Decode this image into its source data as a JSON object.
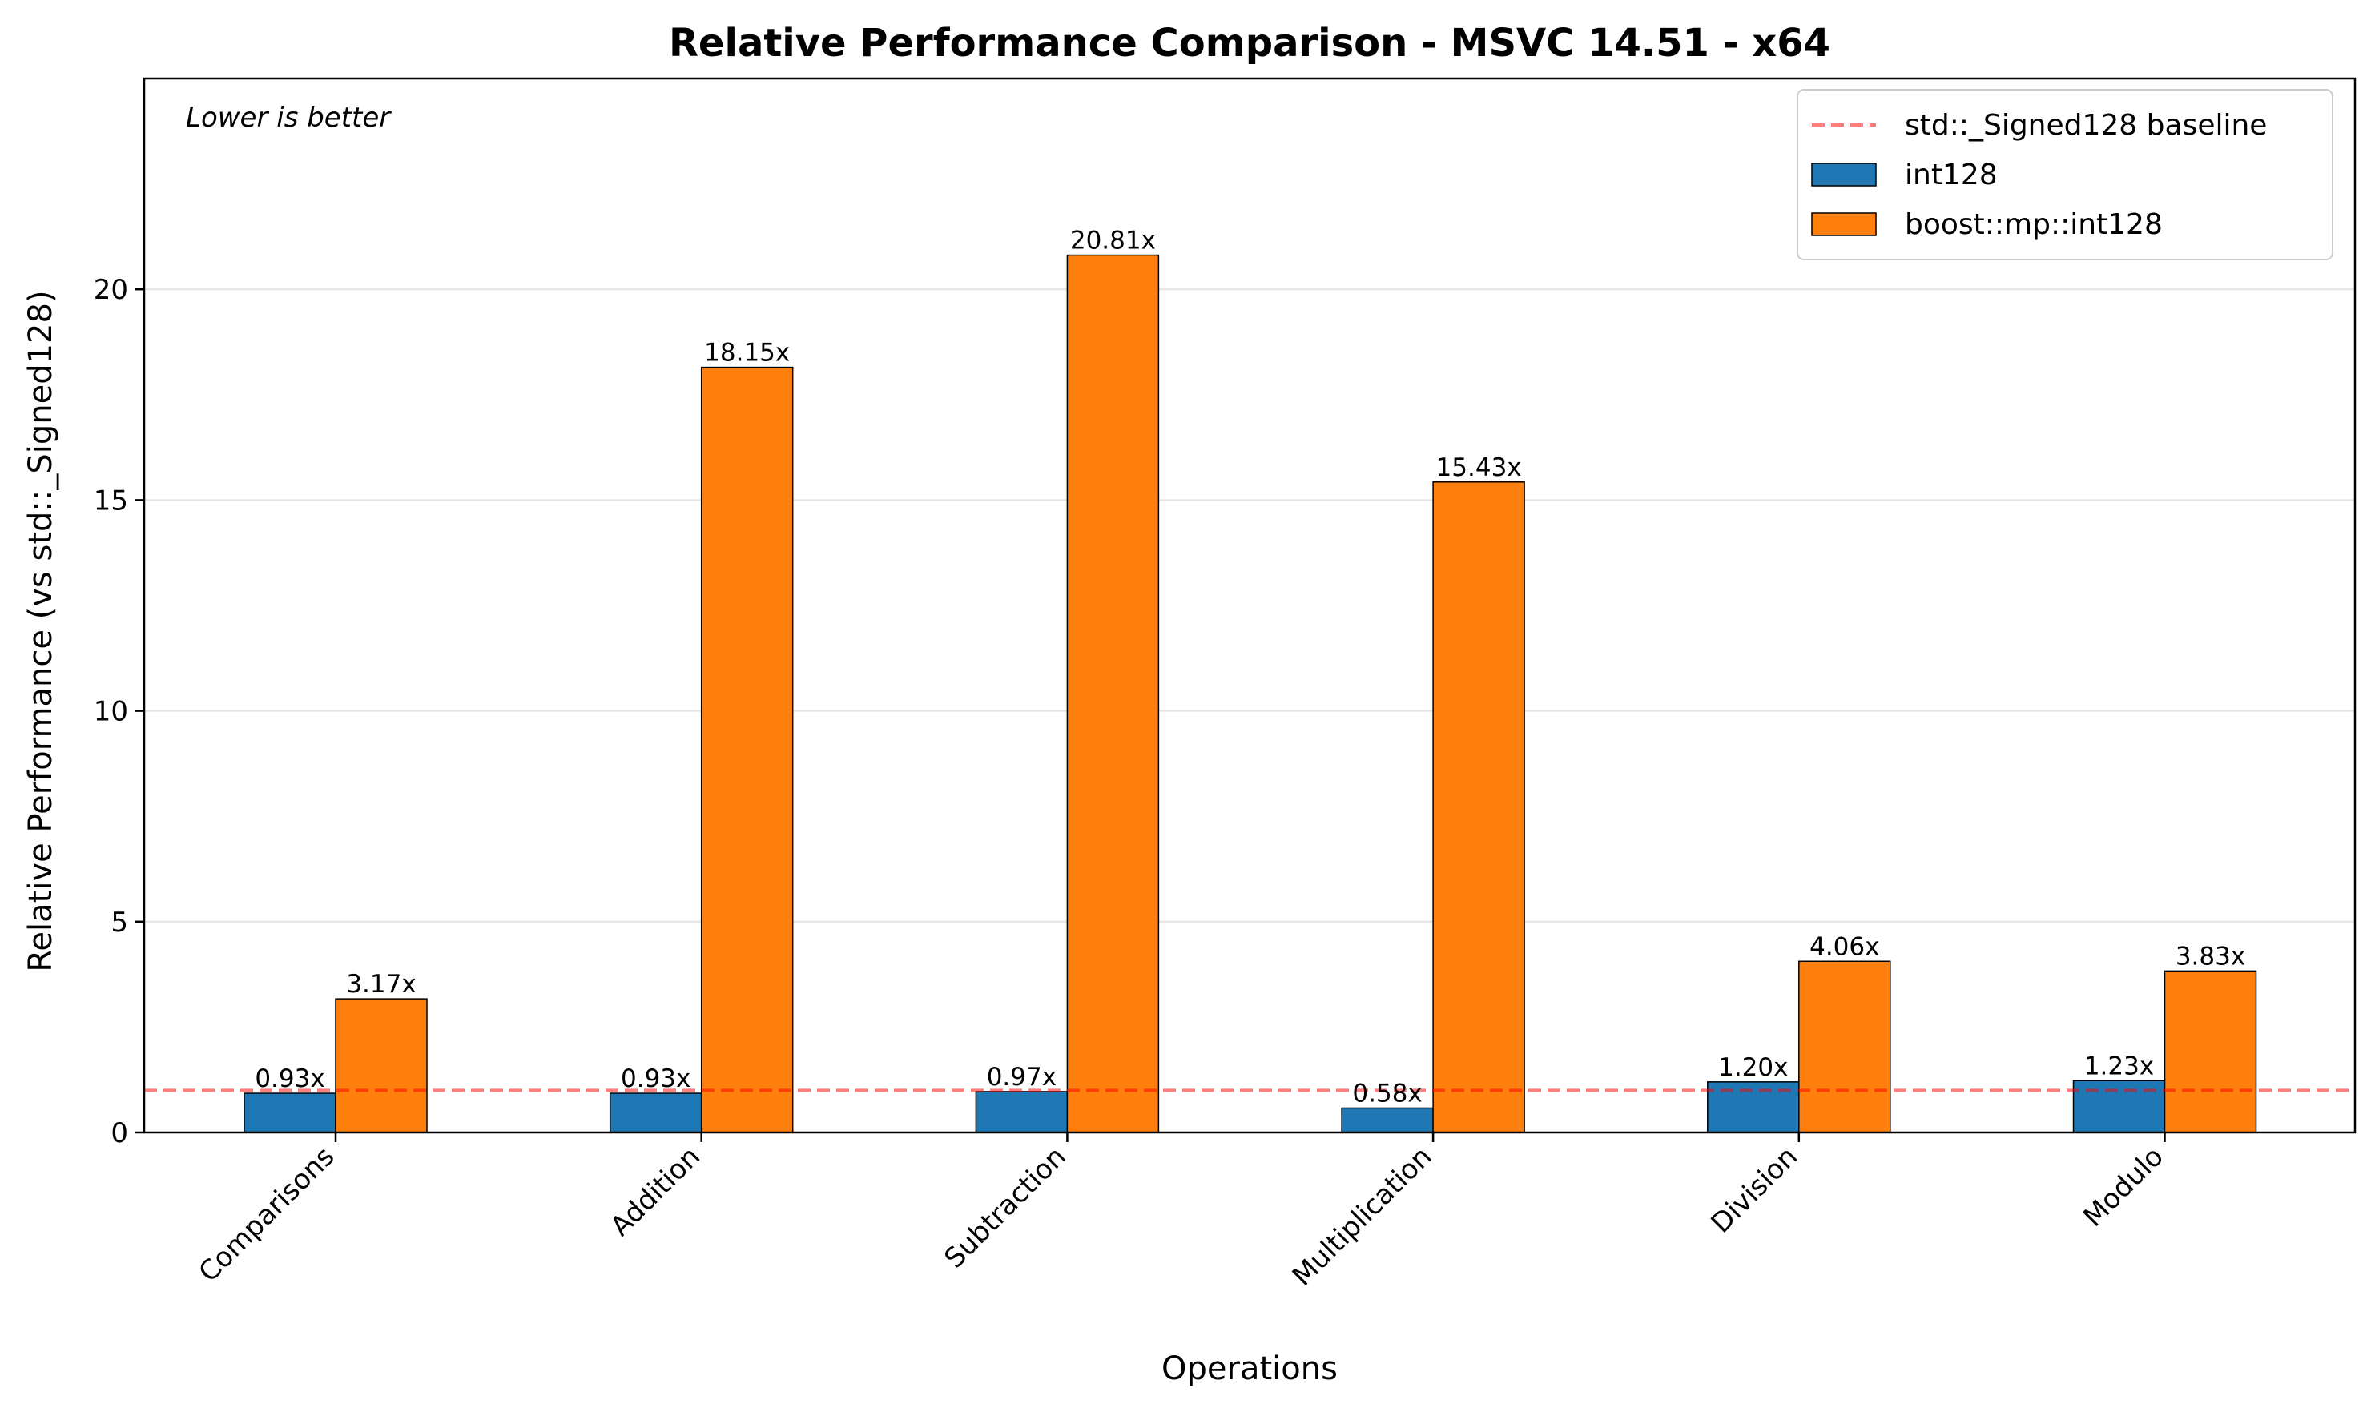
{
  "chart_data": {
    "type": "bar",
    "title": "Relative Performance Comparison - MSVC 14.51 - x64",
    "xlabel": "Operations",
    "ylabel": "Relative Performance (vs std::_Signed128)",
    "annotation": "Lower is better",
    "categories": [
      "Comparisons",
      "Addition",
      "Subtraction",
      "Multiplication",
      "Division",
      "Modulo"
    ],
    "series": [
      {
        "name": "int128",
        "color": "#1f77b4",
        "values": [
          0.93,
          0.93,
          0.97,
          0.58,
          1.2,
          1.23
        ],
        "labels": [
          "0.93x",
          "0.93x",
          "0.97x",
          "0.58x",
          "1.20x",
          "1.23x"
        ]
      },
      {
        "name": "boost::mp::int128",
        "color": "#ff7f0e",
        "values": [
          3.17,
          18.15,
          20.81,
          15.43,
          4.06,
          3.83
        ],
        "labels": [
          "3.17x",
          "18.15x",
          "20.81x",
          "15.43x",
          "4.06x",
          "3.83x"
        ]
      }
    ],
    "baseline": {
      "name": "std::_Signed128 baseline",
      "value": 1.0,
      "color": "#ff0000"
    },
    "ylim": [
      0,
      25
    ],
    "yticks": [
      0,
      5,
      10,
      15,
      20
    ],
    "ytick_labels": [
      "0",
      "5",
      "10",
      "15",
      "20"
    ],
    "grid": "y",
    "legend": "top-right"
  }
}
